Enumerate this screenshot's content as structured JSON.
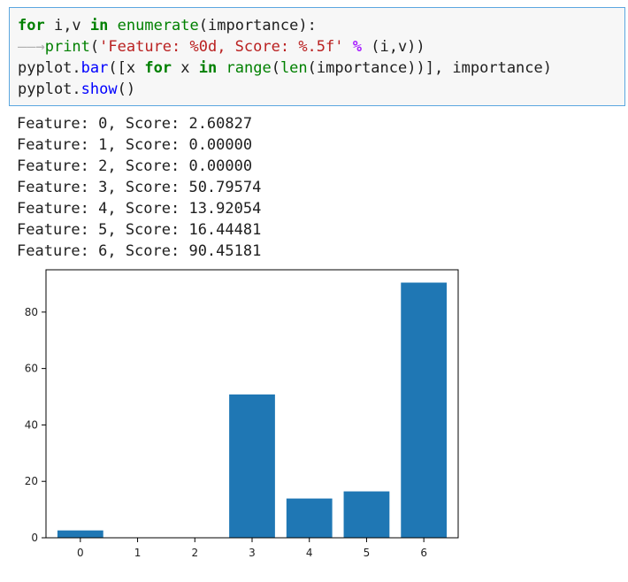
{
  "code": {
    "line1": {
      "kw_for": "for",
      "vars": " i,v ",
      "kw_in": "in",
      "sp": " ",
      "fn": "enumerate",
      "args": "(importance):"
    },
    "line2": {
      "arrow": "——→",
      "fn": "print",
      "open": "(",
      "str": "'Feature: %0d, Score: %.5f'",
      "sp1": " ",
      "op": "%",
      "rest": " (i,v))"
    },
    "line3": {
      "prefix": "pyplot.",
      "method": "bar",
      "part1": "([x ",
      "kw_for": "for",
      "part2": " x ",
      "kw_in": "in",
      "sp": " ",
      "range": "range",
      "open": "(",
      "len": "len",
      "rest": "(importance))], importance)"
    },
    "line4": {
      "prefix": "pyplot.",
      "method": "show",
      "rest": "()"
    }
  },
  "output": [
    "Feature: 0, Score: 2.60827",
    "Feature: 1, Score: 0.00000",
    "Feature: 2, Score: 0.00000",
    "Feature: 3, Score: 50.79574",
    "Feature: 4, Score: 13.92054",
    "Feature: 5, Score: 16.44481",
    "Feature: 6, Score: 90.45181"
  ],
  "chart_data": {
    "type": "bar",
    "categories": [
      "0",
      "1",
      "2",
      "3",
      "4",
      "5",
      "6"
    ],
    "values": [
      2.60827,
      0.0,
      0.0,
      50.79574,
      13.92054,
      16.44481,
      90.45181
    ],
    "yticks": [
      0,
      20,
      40,
      60,
      80
    ],
    "ylim": [
      0,
      95
    ],
    "bar_color": "#1f77b4",
    "title": "",
    "xlabel": "",
    "ylabel": ""
  }
}
